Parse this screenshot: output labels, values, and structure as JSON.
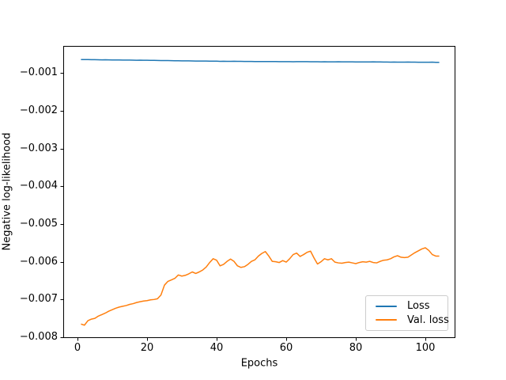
{
  "chart_data": {
    "type": "line",
    "title": "",
    "xlabel": "Epochs",
    "ylabel": "Negative log-likelihood",
    "grid": false,
    "legend_position": "lower right",
    "xlim": [
      -4.09,
      108.64
    ],
    "ylim": [
      -0.008021,
      -0.000283
    ],
    "xticks": [
      0,
      20,
      40,
      60,
      80,
      100
    ],
    "xtick_labels": [
      "0",
      "20",
      "40",
      "60",
      "80",
      "100"
    ],
    "yticks": [
      -0.001,
      -0.002,
      -0.003,
      -0.004,
      -0.005,
      -0.006,
      -0.007,
      -0.008
    ],
    "ytick_labels": [
      "−0.001",
      "−0.002",
      "−0.003",
      "−0.004",
      "−0.005",
      "−0.006",
      "−0.007",
      "−0.008"
    ],
    "x": [
      1,
      2,
      3,
      4,
      5,
      6,
      7,
      8,
      9,
      10,
      11,
      12,
      13,
      14,
      15,
      16,
      17,
      18,
      19,
      20,
      21,
      22,
      23,
      24,
      25,
      26,
      27,
      28,
      29,
      30,
      31,
      32,
      33,
      34,
      35,
      36,
      37,
      38,
      39,
      40,
      41,
      42,
      43,
      44,
      45,
      46,
      47,
      48,
      49,
      50,
      51,
      52,
      53,
      54,
      55,
      56,
      57,
      58,
      59,
      60,
      61,
      62,
      63,
      64,
      65,
      66,
      67,
      68,
      69,
      70,
      71,
      72,
      73,
      74,
      75,
      76,
      77,
      78,
      79,
      80,
      81,
      82,
      83,
      84,
      85,
      86,
      87,
      88,
      89,
      90,
      91,
      92,
      93,
      94,
      95,
      96,
      97,
      98,
      99,
      100,
      101,
      102,
      103,
      104
    ],
    "series": [
      {
        "name": "Loss",
        "color": "#1f77b4",
        "values": [
          -0.000645,
          -0.000646,
          -0.000646,
          -0.000648,
          -0.000648,
          -0.00065,
          -0.000652,
          -0.000651,
          -0.000653,
          -0.000655,
          -0.000656,
          -0.000655,
          -0.000658,
          -0.000659,
          -0.000659,
          -0.000661,
          -0.000662,
          -0.000661,
          -0.000663,
          -0.000664,
          -0.000666,
          -0.000667,
          -0.000668,
          -0.00067,
          -0.000671,
          -0.000672,
          -0.000674,
          -0.000675,
          -0.000676,
          -0.000678,
          -0.000679,
          -0.00068,
          -0.000682,
          -0.000683,
          -0.000684,
          -0.000685,
          -0.000684,
          -0.000687,
          -0.000687,
          -0.000688,
          -0.000691,
          -0.00069,
          -0.000691,
          -0.000691,
          -0.00069,
          -0.000693,
          -0.000693,
          -0.000694,
          -0.000695,
          -0.000695,
          -0.000696,
          -0.000698,
          -0.000697,
          -0.000697,
          -0.000698,
          -0.000698,
          -0.000696,
          -0.000699,
          -0.000699,
          -0.0007,
          -0.0007,
          -0.000702,
          -0.000701,
          -0.000701,
          -0.000701,
          -0.0007,
          -0.000702,
          -0.000702,
          -0.000703,
          -0.000705,
          -0.000703,
          -0.000704,
          -0.000704,
          -0.000704,
          -0.000703,
          -0.000705,
          -0.000705,
          -0.000706,
          -0.000706,
          -0.000707,
          -0.000709,
          -0.000707,
          -0.000708,
          -0.000708,
          -0.000706,
          -0.000709,
          -0.000709,
          -0.00071,
          -0.00071,
          -0.000713,
          -0.000711,
          -0.000712,
          -0.000712,
          -0.000713,
          -0.000711,
          -0.000714,
          -0.000714,
          -0.000715,
          -0.000715,
          -0.000716,
          -0.000716,
          -0.000714,
          -0.000717,
          -0.000717
        ]
      },
      {
        "name": "Val. loss",
        "color": "#ff7f0e",
        "values": [
          -0.00765,
          -0.00768,
          -0.00756,
          -0.00752,
          -0.0075,
          -0.00744,
          -0.0074,
          -0.00736,
          -0.00731,
          -0.00727,
          -0.00723,
          -0.0072,
          -0.00718,
          -0.00716,
          -0.00713,
          -0.00711,
          -0.00708,
          -0.00706,
          -0.00704,
          -0.00703,
          -0.00701,
          -0.007,
          -0.00698,
          -0.00688,
          -0.00662,
          -0.00652,
          -0.00648,
          -0.00644,
          -0.00635,
          -0.00638,
          -0.00636,
          -0.00632,
          -0.00627,
          -0.00631,
          -0.00627,
          -0.00622,
          -0.00614,
          -0.00602,
          -0.00592,
          -0.00596,
          -0.00611,
          -0.00607,
          -0.00599,
          -0.00593,
          -0.00599,
          -0.00611,
          -0.00615,
          -0.00613,
          -0.00607,
          -0.00599,
          -0.00595,
          -0.00585,
          -0.00578,
          -0.00573,
          -0.00585,
          -0.00599,
          -0.006,
          -0.00602,
          -0.00597,
          -0.00601,
          -0.00592,
          -0.00581,
          -0.00577,
          -0.00586,
          -0.00581,
          -0.00575,
          -0.00572,
          -0.0059,
          -0.00606,
          -0.006,
          -0.00592,
          -0.00595,
          -0.00592,
          -0.00601,
          -0.00603,
          -0.00604,
          -0.00602,
          -0.00601,
          -0.00603,
          -0.00605,
          -0.00602,
          -0.006,
          -0.00601,
          -0.00599,
          -0.00602,
          -0.00603,
          -0.00599,
          -0.00596,
          -0.00595,
          -0.00592,
          -0.00587,
          -0.00584,
          -0.00588,
          -0.00589,
          -0.00588,
          -0.00582,
          -0.00576,
          -0.00571,
          -0.00566,
          -0.00563,
          -0.0057,
          -0.00581,
          -0.00585,
          -0.00585
        ]
      }
    ]
  }
}
